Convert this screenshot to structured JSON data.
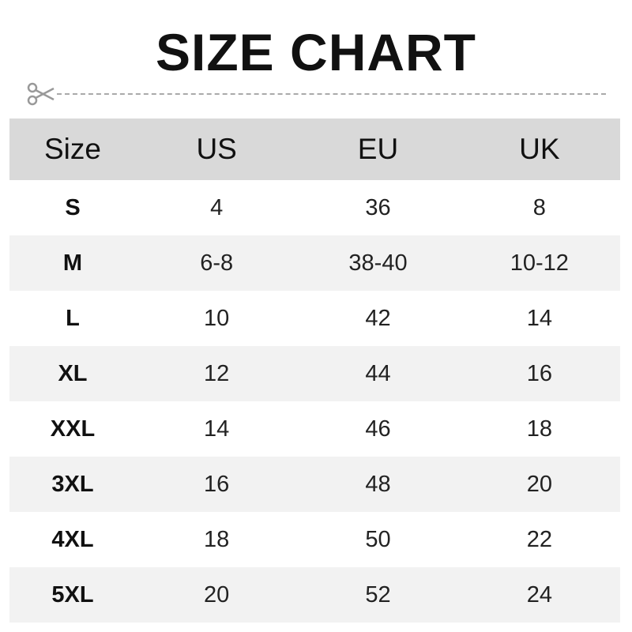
{
  "title": "SIZE CHART",
  "icons": {
    "cut_marker": "scissors-icon"
  },
  "colors": {
    "header_bg": "#d9d9d9",
    "alt_row_bg": "#f2f2f2",
    "dash": "#aaaaaa"
  },
  "table": {
    "headers": [
      "Size",
      "US",
      "EU",
      "UK"
    ],
    "rows": [
      [
        "S",
        "4",
        "36",
        "8"
      ],
      [
        "M",
        "6-8",
        "38-40",
        "10-12"
      ],
      [
        "L",
        "10",
        "42",
        "14"
      ],
      [
        "XL",
        "12",
        "44",
        "16"
      ],
      [
        "XXL",
        "14",
        "46",
        "18"
      ],
      [
        "3XL",
        "16",
        "48",
        "20"
      ],
      [
        "4XL",
        "18",
        "50",
        "22"
      ],
      [
        "5XL",
        "20",
        "52",
        "24"
      ]
    ]
  }
}
